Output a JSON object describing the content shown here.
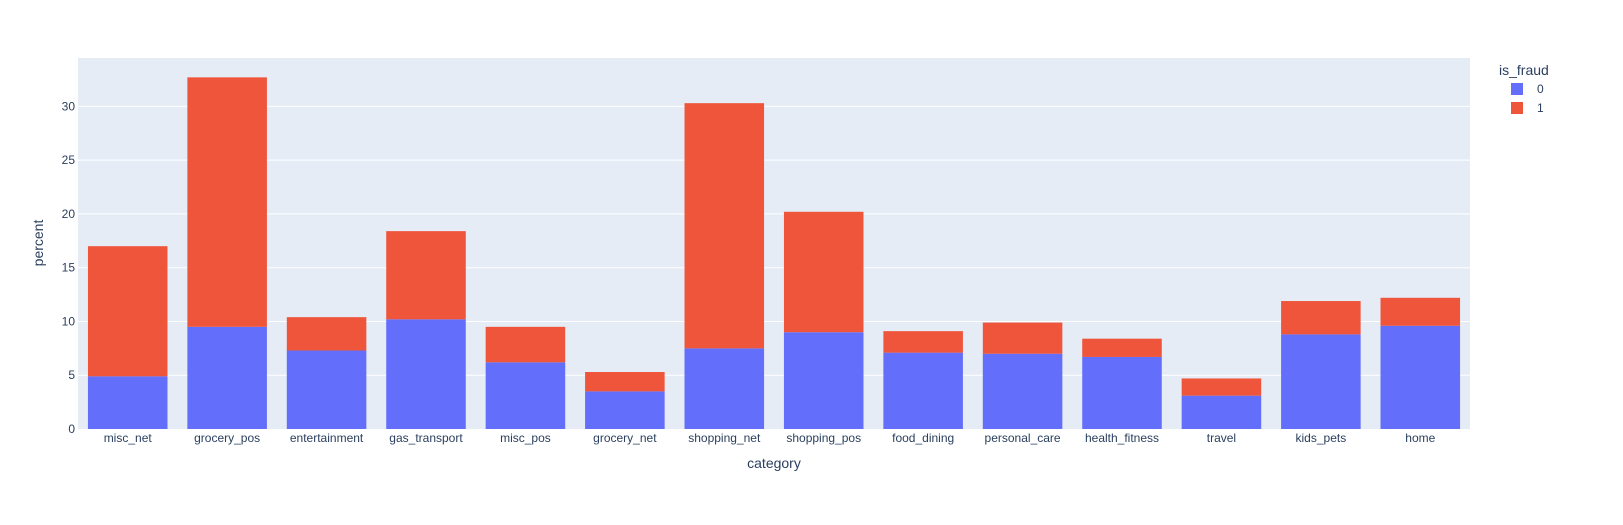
{
  "chart_data": {
    "type": "bar",
    "barmode": "stack",
    "categories": [
      "misc_net",
      "grocery_pos",
      "entertainment",
      "gas_transport",
      "misc_pos",
      "grocery_net",
      "shopping_net",
      "shopping_pos",
      "food_dining",
      "personal_care",
      "health_fitness",
      "travel",
      "kids_pets",
      "home"
    ],
    "series": [
      {
        "name": "0",
        "color": "#636efa",
        "values": [
          4.9,
          9.5,
          7.3,
          10.2,
          6.2,
          3.5,
          7.5,
          9.0,
          7.1,
          7.0,
          6.7,
          3.1,
          8.8,
          9.6
        ]
      },
      {
        "name": "1",
        "color": "#ef553b",
        "values": [
          12.1,
          23.2,
          3.1,
          8.2,
          3.3,
          1.8,
          22.8,
          11.2,
          2.0,
          2.9,
          1.7,
          1.6,
          3.1,
          2.6
        ]
      }
    ],
    "xlabel": "category",
    "ylabel": "percent",
    "ylim": [
      0,
      34.5
    ],
    "yticks": [
      0,
      5,
      10,
      15,
      20,
      25,
      30
    ],
    "legend": {
      "title": "is_fraud",
      "placement": "top-right"
    },
    "grid": true,
    "plot_background": "#e5ecf6"
  }
}
